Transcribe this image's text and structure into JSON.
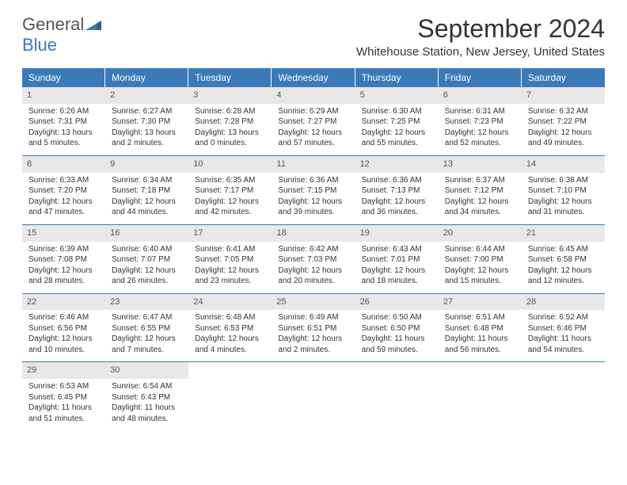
{
  "logo": {
    "text1": "General",
    "text2": "Blue"
  },
  "title": "September 2024",
  "location": "Whitehouse Station, New Jersey, United States",
  "day_headers": [
    "Sunday",
    "Monday",
    "Tuesday",
    "Wednesday",
    "Thursday",
    "Friday",
    "Saturday"
  ],
  "colors": {
    "header_bg": "#3a7ab8",
    "daynum_bg": "#e8e8e8",
    "text": "#333333",
    "logo_gray": "#555555",
    "logo_blue": "#3a7ab8"
  },
  "days": [
    {
      "n": "1",
      "sr": "Sunrise: 6:26 AM",
      "ss": "Sunset: 7:31 PM",
      "dl1": "Daylight: 13 hours",
      "dl2": "and 5 minutes."
    },
    {
      "n": "2",
      "sr": "Sunrise: 6:27 AM",
      "ss": "Sunset: 7:30 PM",
      "dl1": "Daylight: 13 hours",
      "dl2": "and 2 minutes."
    },
    {
      "n": "3",
      "sr": "Sunrise: 6:28 AM",
      "ss": "Sunset: 7:28 PM",
      "dl1": "Daylight: 13 hours",
      "dl2": "and 0 minutes."
    },
    {
      "n": "4",
      "sr": "Sunrise: 6:29 AM",
      "ss": "Sunset: 7:27 PM",
      "dl1": "Daylight: 12 hours",
      "dl2": "and 57 minutes."
    },
    {
      "n": "5",
      "sr": "Sunrise: 6:30 AM",
      "ss": "Sunset: 7:25 PM",
      "dl1": "Daylight: 12 hours",
      "dl2": "and 55 minutes."
    },
    {
      "n": "6",
      "sr": "Sunrise: 6:31 AM",
      "ss": "Sunset: 7:23 PM",
      "dl1": "Daylight: 12 hours",
      "dl2": "and 52 minutes."
    },
    {
      "n": "7",
      "sr": "Sunrise: 6:32 AM",
      "ss": "Sunset: 7:22 PM",
      "dl1": "Daylight: 12 hours",
      "dl2": "and 49 minutes."
    },
    {
      "n": "8",
      "sr": "Sunrise: 6:33 AM",
      "ss": "Sunset: 7:20 PM",
      "dl1": "Daylight: 12 hours",
      "dl2": "and 47 minutes."
    },
    {
      "n": "9",
      "sr": "Sunrise: 6:34 AM",
      "ss": "Sunset: 7:18 PM",
      "dl1": "Daylight: 12 hours",
      "dl2": "and 44 minutes."
    },
    {
      "n": "10",
      "sr": "Sunrise: 6:35 AM",
      "ss": "Sunset: 7:17 PM",
      "dl1": "Daylight: 12 hours",
      "dl2": "and 42 minutes."
    },
    {
      "n": "11",
      "sr": "Sunrise: 6:36 AM",
      "ss": "Sunset: 7:15 PM",
      "dl1": "Daylight: 12 hours",
      "dl2": "and 39 minutes."
    },
    {
      "n": "12",
      "sr": "Sunrise: 6:36 AM",
      "ss": "Sunset: 7:13 PM",
      "dl1": "Daylight: 12 hours",
      "dl2": "and 36 minutes."
    },
    {
      "n": "13",
      "sr": "Sunrise: 6:37 AM",
      "ss": "Sunset: 7:12 PM",
      "dl1": "Daylight: 12 hours",
      "dl2": "and 34 minutes."
    },
    {
      "n": "14",
      "sr": "Sunrise: 6:38 AM",
      "ss": "Sunset: 7:10 PM",
      "dl1": "Daylight: 12 hours",
      "dl2": "and 31 minutes."
    },
    {
      "n": "15",
      "sr": "Sunrise: 6:39 AM",
      "ss": "Sunset: 7:08 PM",
      "dl1": "Daylight: 12 hours",
      "dl2": "and 28 minutes."
    },
    {
      "n": "16",
      "sr": "Sunrise: 6:40 AM",
      "ss": "Sunset: 7:07 PM",
      "dl1": "Daylight: 12 hours",
      "dl2": "and 26 minutes."
    },
    {
      "n": "17",
      "sr": "Sunrise: 6:41 AM",
      "ss": "Sunset: 7:05 PM",
      "dl1": "Daylight: 12 hours",
      "dl2": "and 23 minutes."
    },
    {
      "n": "18",
      "sr": "Sunrise: 6:42 AM",
      "ss": "Sunset: 7:03 PM",
      "dl1": "Daylight: 12 hours",
      "dl2": "and 20 minutes."
    },
    {
      "n": "19",
      "sr": "Sunrise: 6:43 AM",
      "ss": "Sunset: 7:01 PM",
      "dl1": "Daylight: 12 hours",
      "dl2": "and 18 minutes."
    },
    {
      "n": "20",
      "sr": "Sunrise: 6:44 AM",
      "ss": "Sunset: 7:00 PM",
      "dl1": "Daylight: 12 hours",
      "dl2": "and 15 minutes."
    },
    {
      "n": "21",
      "sr": "Sunrise: 6:45 AM",
      "ss": "Sunset: 6:58 PM",
      "dl1": "Daylight: 12 hours",
      "dl2": "and 12 minutes."
    },
    {
      "n": "22",
      "sr": "Sunrise: 6:46 AM",
      "ss": "Sunset: 6:56 PM",
      "dl1": "Daylight: 12 hours",
      "dl2": "and 10 minutes."
    },
    {
      "n": "23",
      "sr": "Sunrise: 6:47 AM",
      "ss": "Sunset: 6:55 PM",
      "dl1": "Daylight: 12 hours",
      "dl2": "and 7 minutes."
    },
    {
      "n": "24",
      "sr": "Sunrise: 6:48 AM",
      "ss": "Sunset: 6:53 PM",
      "dl1": "Daylight: 12 hours",
      "dl2": "and 4 minutes."
    },
    {
      "n": "25",
      "sr": "Sunrise: 6:49 AM",
      "ss": "Sunset: 6:51 PM",
      "dl1": "Daylight: 12 hours",
      "dl2": "and 2 minutes."
    },
    {
      "n": "26",
      "sr": "Sunrise: 6:50 AM",
      "ss": "Sunset: 6:50 PM",
      "dl1": "Daylight: 11 hours",
      "dl2": "and 59 minutes."
    },
    {
      "n": "27",
      "sr": "Sunrise: 6:51 AM",
      "ss": "Sunset: 6:48 PM",
      "dl1": "Daylight: 11 hours",
      "dl2": "and 56 minutes."
    },
    {
      "n": "28",
      "sr": "Sunrise: 6:52 AM",
      "ss": "Sunset: 6:46 PM",
      "dl1": "Daylight: 11 hours",
      "dl2": "and 54 minutes."
    },
    {
      "n": "29",
      "sr": "Sunrise: 6:53 AM",
      "ss": "Sunset: 6:45 PM",
      "dl1": "Daylight: 11 hours",
      "dl2": "and 51 minutes."
    },
    {
      "n": "30",
      "sr": "Sunrise: 6:54 AM",
      "ss": "Sunset: 6:43 PM",
      "dl1": "Daylight: 11 hours",
      "dl2": "and 48 minutes."
    }
  ]
}
